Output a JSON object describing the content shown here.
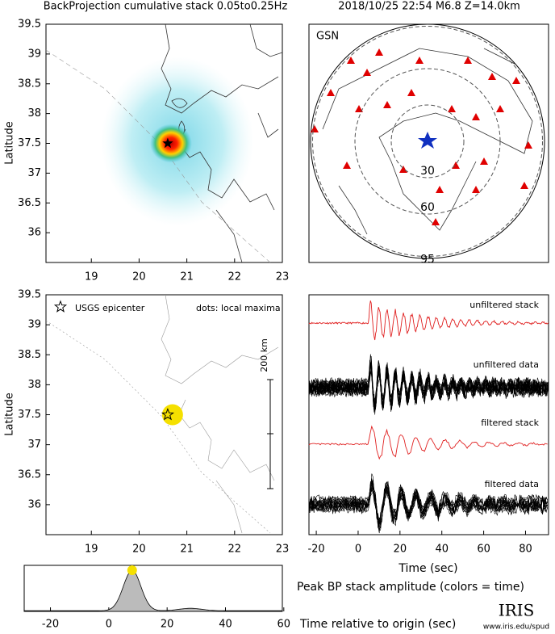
{
  "top_left": {
    "title": "BackProjection cumulative stack 0.05to0.25Hz",
    "ylabel": "Latitude",
    "xlim": [
      18.05,
      23
    ],
    "ylim": [
      35.5,
      39.5
    ],
    "xticks": [
      19,
      20,
      21,
      22,
      23
    ],
    "yticks": [
      36,
      36.5,
      37,
      37.5,
      38,
      38.5,
      39,
      39.5
    ],
    "epicenter": {
      "lon": 20.6,
      "lat": 37.5
    }
  },
  "top_right": {
    "title": "2018/10/25 22:54  M6.8  Z=14.0km",
    "network": "GSN",
    "rings": [
      30,
      60,
      95
    ]
  },
  "middle_left": {
    "ylabel": "Latitude",
    "xlim": [
      18.05,
      23
    ],
    "ylim": [
      35.5,
      39.5
    ],
    "xticks": [
      19,
      20,
      21,
      22,
      23
    ],
    "yticks": [
      36,
      36.5,
      37,
      37.5,
      38,
      38.5,
      39,
      39.5
    ],
    "legend_label": "USGS epicenter",
    "note": "dots: local maxima",
    "scale_label": "200 km",
    "epicenter": {
      "lon": 20.6,
      "lat": 37.5
    },
    "maximum": {
      "lon": 20.7,
      "lat": 37.5
    }
  },
  "middle_right": {
    "xlim": [
      -23.5,
      91
    ],
    "xticks": [
      -20,
      0,
      20,
      40,
      60,
      80
    ],
    "xlabel": "Time (sec)",
    "traces": [
      "unfiltered stack",
      "unfiltered data",
      "filtered stack",
      "filtered data"
    ]
  },
  "bottom": {
    "xlim": [
      -29,
      59.5
    ],
    "xticks": [
      -20,
      0,
      20,
      40,
      60
    ],
    "peak_time": 8,
    "title": "Peak BP stack amplitude (colors = time)",
    "xlabel": "Time relative to origin (sec)"
  },
  "logo": {
    "name": "IRIS",
    "url": "www.iris.edu/spud"
  }
}
